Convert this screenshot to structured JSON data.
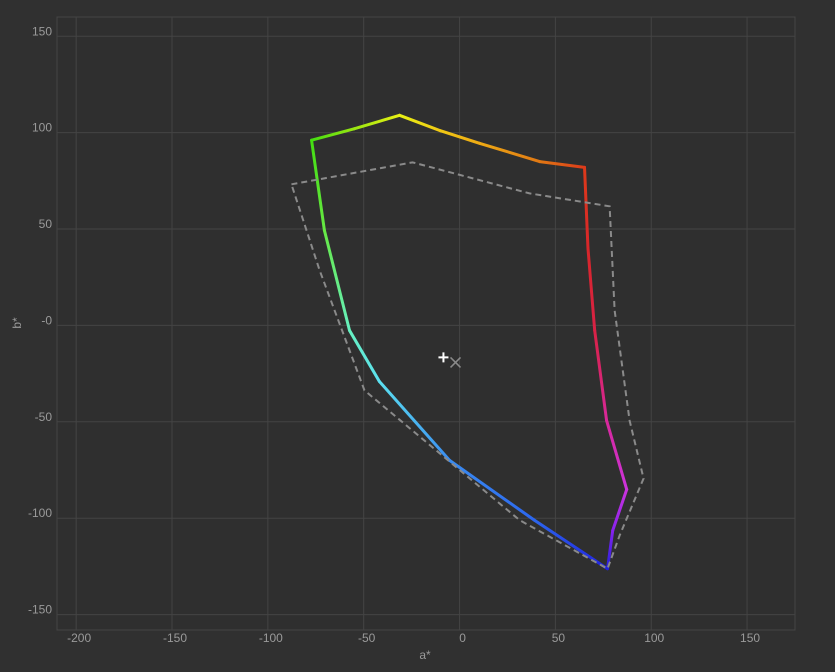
{
  "chart_data": {
    "type": "line",
    "title": "",
    "xlabel": "a*",
    "ylabel": "b*",
    "xlim": [
      -210,
      175
    ],
    "ylim": [
      -158,
      160
    ],
    "grid": true,
    "xticks": [
      -200,
      -150,
      -100,
      -50,
      0,
      50,
      100,
      150
    ],
    "xtick_labels": [
      "-200",
      "-150",
      "-100",
      "-50",
      "0",
      "50",
      "100",
      "150"
    ],
    "yticks": [
      150,
      100,
      50,
      0,
      -50,
      -100,
      -150
    ],
    "ytick_labels": [
      "150",
      "100",
      "50",
      "-0",
      "-50",
      "-100",
      "-150"
    ],
    "series": [
      {
        "style": "solid-hue-gradient",
        "points": [
          {
            "a": -77.2,
            "b": 96.1,
            "color": "#44dd11"
          },
          {
            "a": -55,
            "b": 102,
            "color": "#99e611"
          },
          {
            "a": -31.3,
            "b": 109,
            "color": "#e8f014"
          },
          {
            "a": -10,
            "b": 101,
            "color": "#f0c814"
          },
          {
            "a": 10.4,
            "b": 94.5,
            "color": "#eeaa14"
          },
          {
            "a": 41.8,
            "b": 85,
            "color": "#e07814"
          },
          {
            "a": 65.2,
            "b": 82,
            "color": "#dd3a1a"
          },
          {
            "a": 67,
            "b": 40,
            "color": "#d8262a"
          },
          {
            "a": 70.5,
            "b": -2.6,
            "color": "#d82245"
          },
          {
            "a": 76.7,
            "b": -49.3,
            "color": "#d8289a"
          },
          {
            "a": 87.2,
            "b": -85.1,
            "color": "#cc33dd"
          },
          {
            "a": 79.9,
            "b": -106.4,
            "color": "#8822ee"
          },
          {
            "a": 77.2,
            "b": -126.2,
            "color": "#2222dd"
          },
          {
            "a": 39,
            "b": -101,
            "color": "#2c66ee"
          },
          {
            "a": -5.2,
            "b": -70,
            "color": "#3a8cf0"
          },
          {
            "a": -41.8,
            "b": -29.1,
            "color": "#5ce0f0"
          },
          {
            "a": -57.4,
            "b": -2.6,
            "color": "#66f0c0"
          },
          {
            "a": -70.5,
            "b": 49.3,
            "color": "#66e844"
          },
          {
            "a": -77.2,
            "b": 96.1,
            "color": "#44dd11"
          }
        ]
      },
      {
        "style": "dashed",
        "color": "#8a8a8a",
        "points": [
          {
            "a": -87.7,
            "b": 73.2
          },
          {
            "a": -24.5,
            "b": 84.6
          },
          {
            "a": 36.5,
            "b": 68.5
          },
          {
            "a": 78.3,
            "b": 61.8
          },
          {
            "a": 80.9,
            "b": 7.8
          },
          {
            "a": 88.7,
            "b": -49.3
          },
          {
            "a": 96,
            "b": -79.4
          },
          {
            "a": 83.5,
            "b": -109
          },
          {
            "a": 77.2,
            "b": -126.2
          },
          {
            "a": 31.3,
            "b": -101
          },
          {
            "a": -49.6,
            "b": -33.7
          },
          {
            "a": -73,
            "b": 28.6
          },
          {
            "a": -87.7,
            "b": 73.2
          }
        ]
      }
    ],
    "markers": [
      {
        "symbol": "plus",
        "a": -8.4,
        "b": -16.6,
        "color": "#ffffff"
      },
      {
        "symbol": "cross",
        "a": -2.1,
        "b": -19.2,
        "color": "#8a8a8a"
      }
    ],
    "colors": {
      "background": "#303030",
      "grid": "#444444",
      "text": "#9a9a9a"
    }
  }
}
